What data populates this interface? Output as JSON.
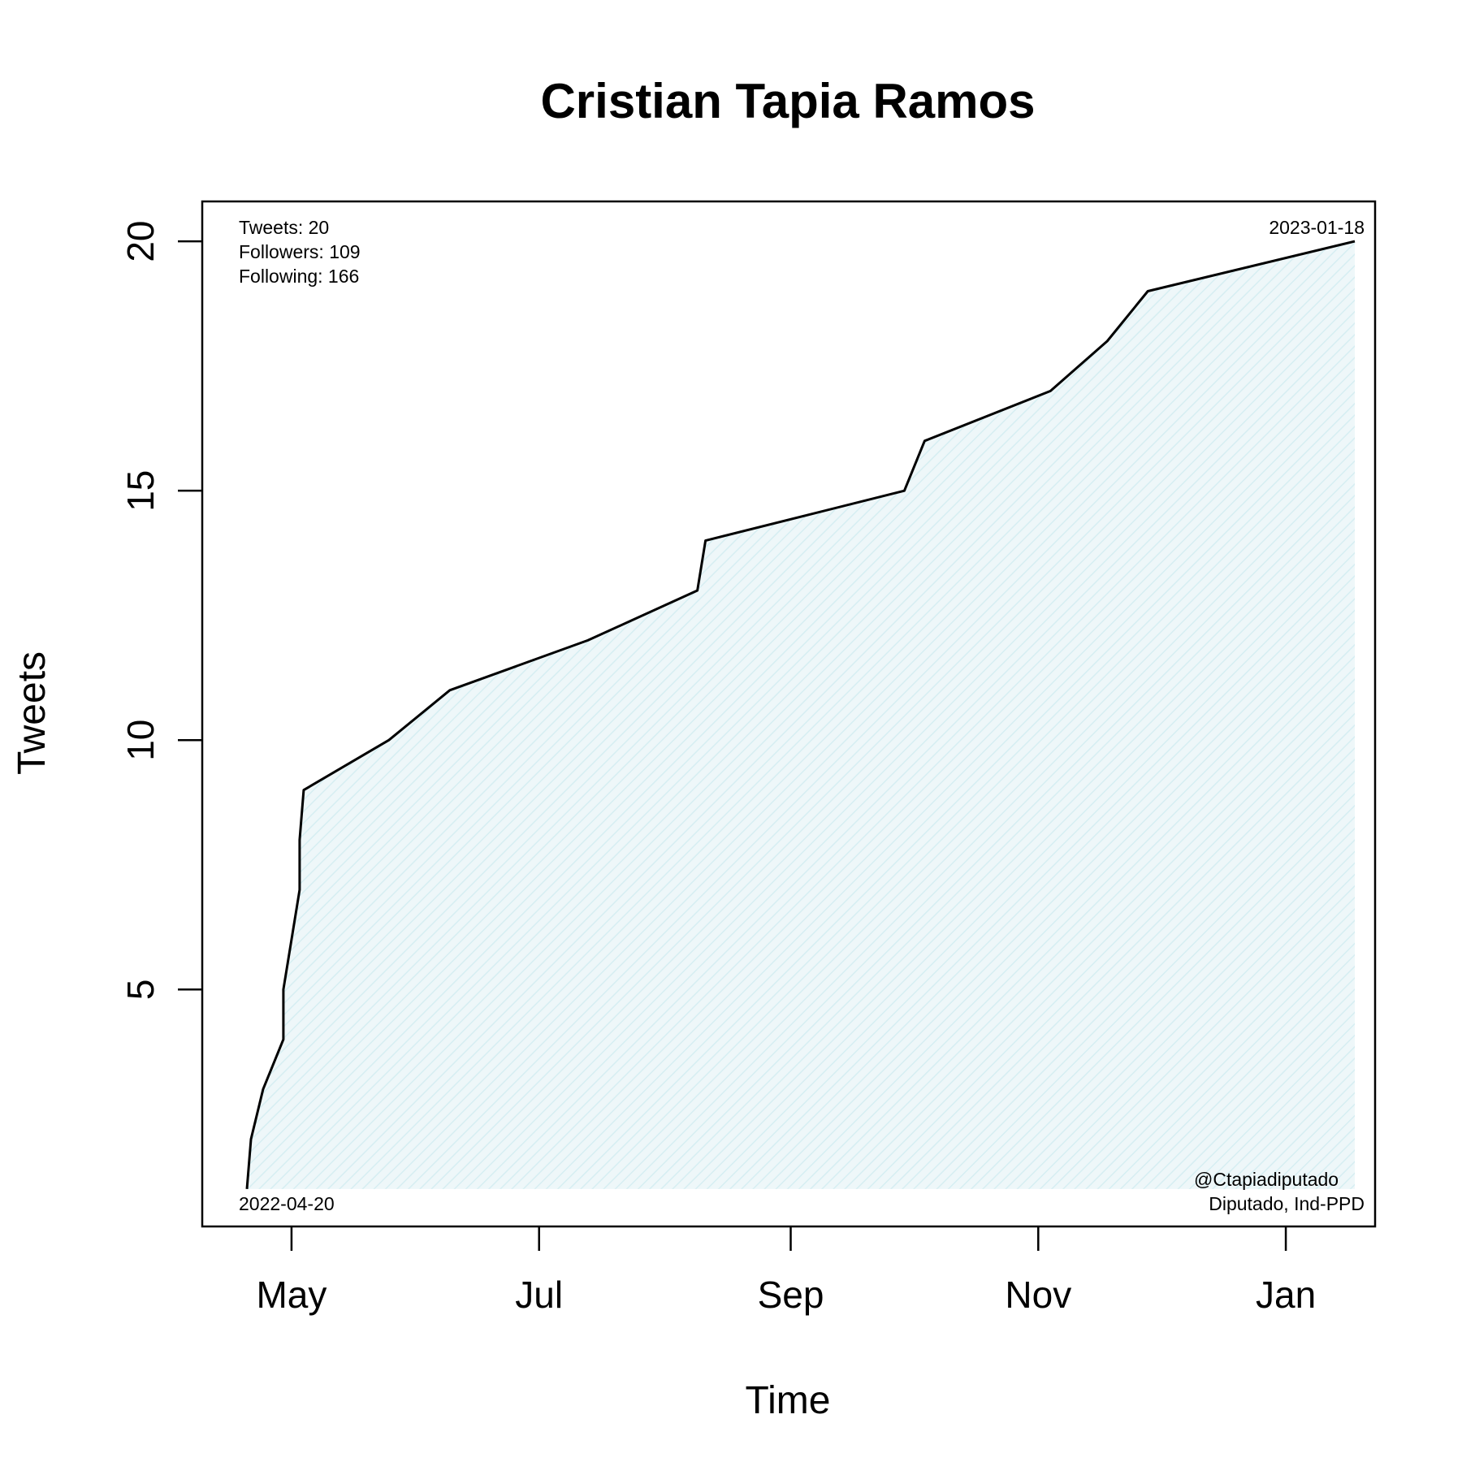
{
  "chart_data": {
    "type": "area",
    "title": "Cristian Tapia Ramos",
    "xlabel": "Time",
    "ylabel": "Tweets",
    "xlim": [
      "2022-04-09",
      "2023-01-23"
    ],
    "ylim": [
      0.25,
      20.8
    ],
    "x_ticks": [
      {
        "date": "2022-05-01",
        "label": "May"
      },
      {
        "date": "2022-07-01",
        "label": "Jul"
      },
      {
        "date": "2022-09-01",
        "label": "Sep"
      },
      {
        "date": "2022-11-01",
        "label": "Nov"
      },
      {
        "date": "2023-01-01",
        "label": "Jan"
      }
    ],
    "y_ticks": [
      5,
      10,
      15,
      20
    ],
    "grid": false,
    "line_color": "#000000",
    "fill_color": "#d6eef2",
    "series": [
      {
        "points": [
          {
            "x": "2022-04-20",
            "y": 1
          },
          {
            "x": "2022-04-21",
            "y": 2
          },
          {
            "x": "2022-04-24",
            "y": 3
          },
          {
            "x": "2022-04-29",
            "y": 4
          },
          {
            "x": "2022-04-29",
            "y": 5
          },
          {
            "x": "2022-05-03",
            "y": 7
          },
          {
            "x": "2022-05-03",
            "y": 8
          },
          {
            "x": "2022-05-04",
            "y": 9
          },
          {
            "x": "2022-05-25",
            "y": 10
          },
          {
            "x": "2022-06-09",
            "y": 11
          },
          {
            "x": "2022-07-13",
            "y": 12
          },
          {
            "x": "2022-08-09",
            "y": 13
          },
          {
            "x": "2022-08-11",
            "y": 14
          },
          {
            "x": "2022-09-29",
            "y": 15
          },
          {
            "x": "2022-10-04",
            "y": 16
          },
          {
            "x": "2022-11-04",
            "y": 17
          },
          {
            "x": "2022-11-18",
            "y": 18
          },
          {
            "x": "2022-11-28",
            "y": 19
          },
          {
            "x": "2023-01-18",
            "y": 20
          }
        ]
      }
    ],
    "annotations": {
      "stats": [
        "Tweets: 20",
        "Followers: 109",
        "Following: 166"
      ],
      "start_date": "2022-04-20",
      "end_date": "2023-01-18",
      "handle": "@Ctapiadiputado",
      "role": "Diputado, Ind-PPD"
    }
  }
}
